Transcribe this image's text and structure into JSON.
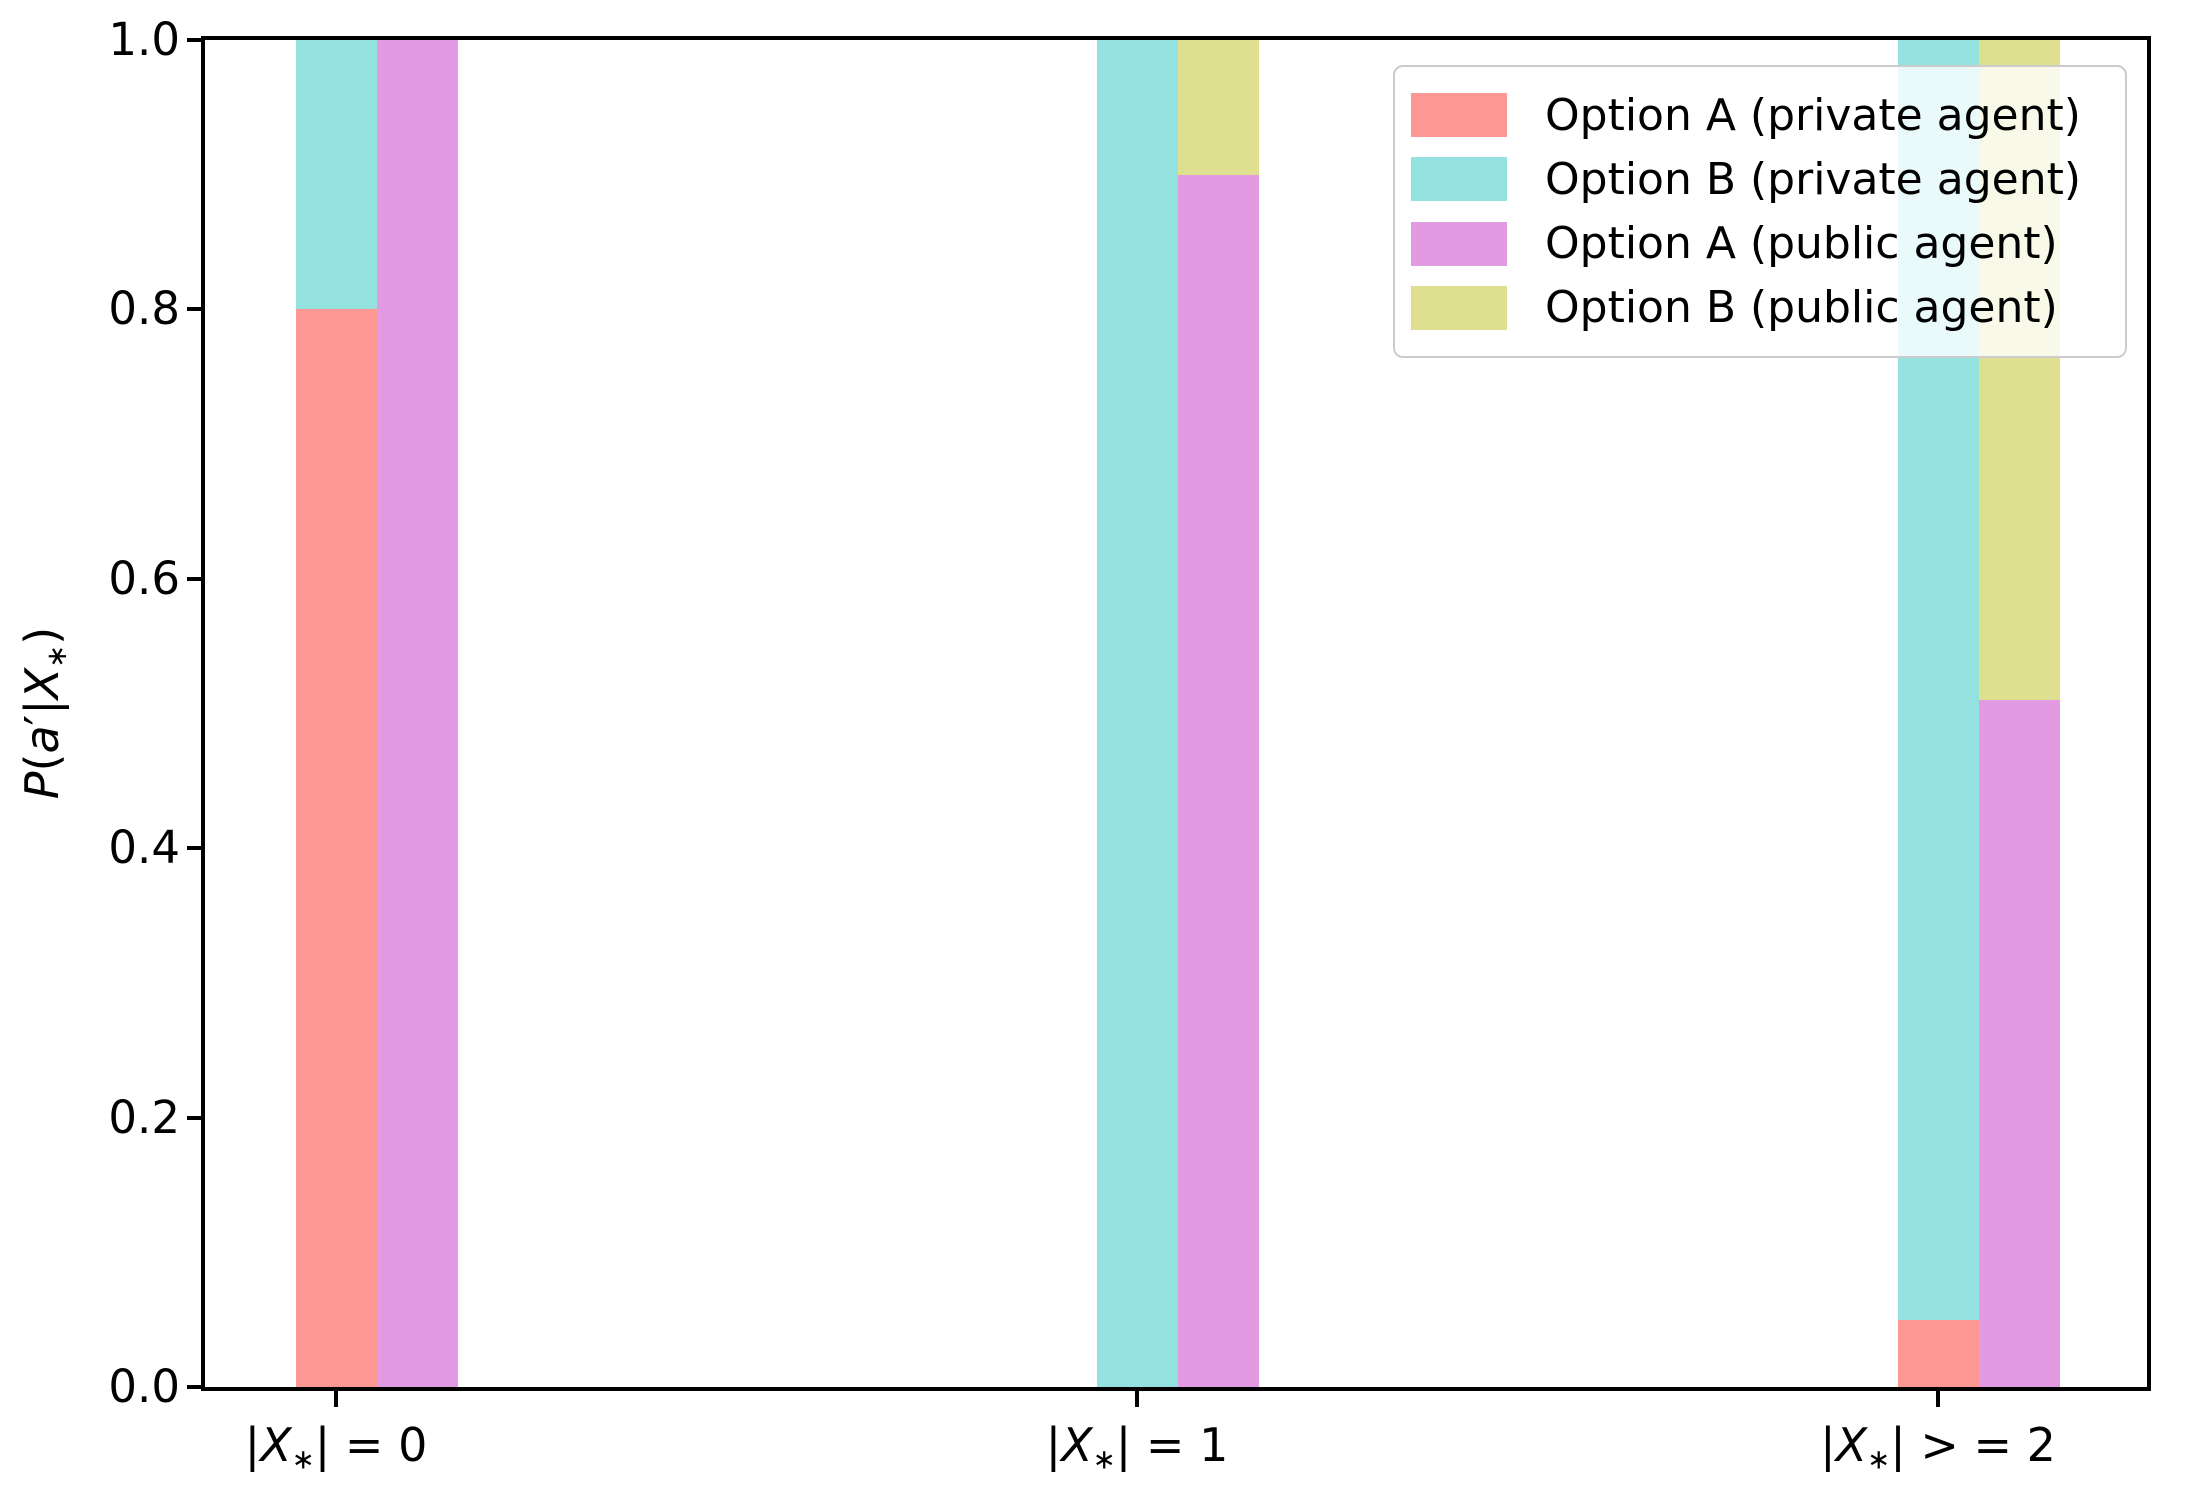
{
  "chart_data": {
    "type": "bar",
    "stacked": true,
    "orientation": "vertical",
    "title": "",
    "xlabel": "",
    "ylabel": "P(a′|X∗)",
    "ylabel_parts": [
      {
        "t": "P",
        "italic": true
      },
      {
        "t": "("
      },
      {
        "t": "a",
        "italic": true
      },
      {
        "t": "′"
      },
      {
        "t": "|"
      },
      {
        "t": "X",
        "italic": true
      },
      {
        "t": "∗",
        "sub": true
      },
      {
        "t": ")"
      }
    ],
    "ylim": [
      0.0,
      1.0
    ],
    "yticks": [
      0.0,
      0.2,
      0.4,
      0.6,
      0.8,
      1.0
    ],
    "ytick_labels": [
      "0.0",
      "0.2",
      "0.4",
      "0.6",
      "0.8",
      "1.0"
    ],
    "categories": [
      "|X∗| = 0",
      "|X∗| = 1",
      "|X∗| > = 2"
    ],
    "category_parts": [
      [
        {
          "t": "|"
        },
        {
          "t": "X",
          "italic": true
        },
        {
          "t": "∗",
          "sub": true
        },
        {
          "t": "| = 0"
        }
      ],
      [
        {
          "t": "|"
        },
        {
          "t": "X",
          "italic": true
        },
        {
          "t": "∗",
          "sub": true
        },
        {
          "t": "| = 1"
        }
      ],
      [
        {
          "t": "|"
        },
        {
          "t": "X",
          "italic": true
        },
        {
          "t": "∗",
          "sub": true
        },
        {
          "t": "| > = 2"
        }
      ]
    ],
    "bars_per_category": [
      "private",
      "public"
    ],
    "series": [
      {
        "name": "Option A (private agent)",
        "bar": "private",
        "color": "#FC9793",
        "values": [
          0.8,
          0.0,
          0.05
        ]
      },
      {
        "name": "Option B (private agent)",
        "bar": "private",
        "color": "#94E2DF",
        "values": [
          0.2,
          1.0,
          0.95
        ]
      },
      {
        "name": "Option A (public agent)",
        "bar": "public",
        "color": "#E29AE3",
        "values": [
          1.0,
          0.9,
          0.51
        ]
      },
      {
        "name": "Option B (public agent)",
        "bar": "public",
        "color": "#DEE090",
        "values": [
          0.0,
          0.1,
          0.49
        ]
      }
    ],
    "legend_position": "upper right",
    "grid": false,
    "colors": {
      "background": "#ffffff",
      "spine": "#000000",
      "text": "#000000",
      "legend_border": "#cccccc",
      "legend_background": "rgba(255,255,255,0.8)"
    }
  }
}
